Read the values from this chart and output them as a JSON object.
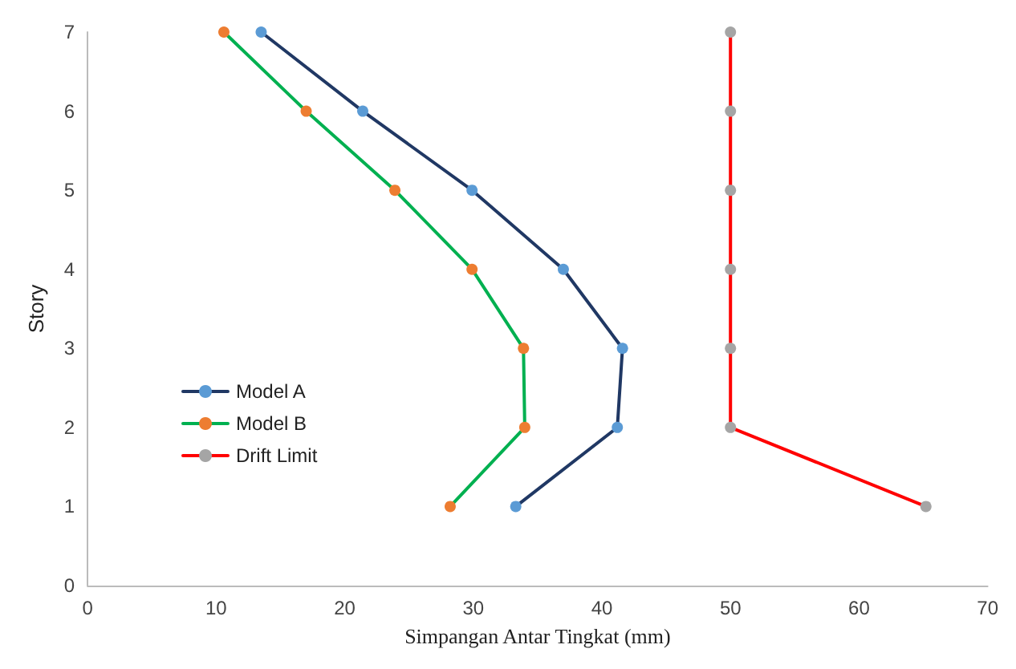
{
  "chart_data": {
    "type": "line",
    "xlabel": "Simpangan Antar Tingkat (mm)",
    "ylabel": "Story",
    "xlim": [
      0,
      70
    ],
    "xticks": [
      0,
      10,
      20,
      30,
      40,
      50,
      60,
      70
    ],
    "ylim": [
      0,
      7
    ],
    "yticks": [
      0,
      1,
      2,
      3,
      4,
      5,
      6,
      7
    ],
    "grid": false,
    "legend": "center left",
    "marker": "circle",
    "line_style": "solid",
    "series": [
      {
        "name": "Model A",
        "color": "#203864",
        "colors": [
          "#5b9bd5",
          "#5b9bd5",
          "#5b9bd5",
          "#5b9bd5",
          "#5b9bd5",
          "#5b9bd5",
          "#5b9bd5"
        ],
        "x": [
          33.3,
          41.2,
          41.6,
          37.0,
          29.9,
          21.4,
          13.5
        ],
        "values": [
          1,
          2,
          3,
          4,
          5,
          6,
          7
        ]
      },
      {
        "name": "Model B",
        "color": "#00b050",
        "colors": [
          "#ed7d31",
          "#ed7d31",
          "#ed7d31",
          "#ed7d31",
          "#ed7d31",
          "#ed7d31",
          "#ed7d31"
        ],
        "x": [
          28.2,
          34.0,
          33.9,
          29.9,
          23.9,
          17.0,
          10.6
        ],
        "values": [
          1,
          2,
          3,
          4,
          5,
          6,
          7
        ]
      },
      {
        "name": "Drift Limit",
        "color": "#ff0000",
        "colors": [
          "#a5a5a5",
          "#a5a5a5",
          "#a5a5a5",
          "#a5a5a5",
          "#a5a5a5",
          "#a5a5a5",
          "#a5a5a5"
        ],
        "x": [
          65.2,
          50,
          50,
          50,
          50,
          50,
          50
        ],
        "values": [
          1,
          2,
          3,
          4,
          5,
          6,
          7
        ]
      }
    ]
  }
}
